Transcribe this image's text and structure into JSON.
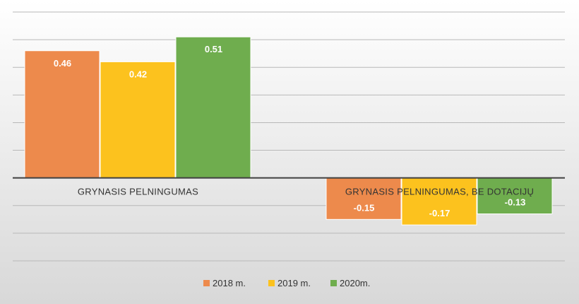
{
  "chart_data": {
    "type": "bar",
    "categories": [
      "GRYNASIS PELNINGUMAS",
      "GRYNASIS PELNINGUMAS, BE DOTACIJŲ"
    ],
    "series": [
      {
        "name": "2018 m.",
        "color": "#ed8a4c",
        "values": [
          0.46,
          -0.15
        ]
      },
      {
        "name": "2019 m.",
        "color": "#fcc21e",
        "values": [
          0.42,
          -0.17
        ]
      },
      {
        "name": "2020m.",
        "color": "#6fad4e",
        "values": [
          0.51,
          -0.13
        ]
      }
    ],
    "ylim": [
      -0.3,
      0.6
    ],
    "grid": true,
    "legend": "bottom"
  }
}
